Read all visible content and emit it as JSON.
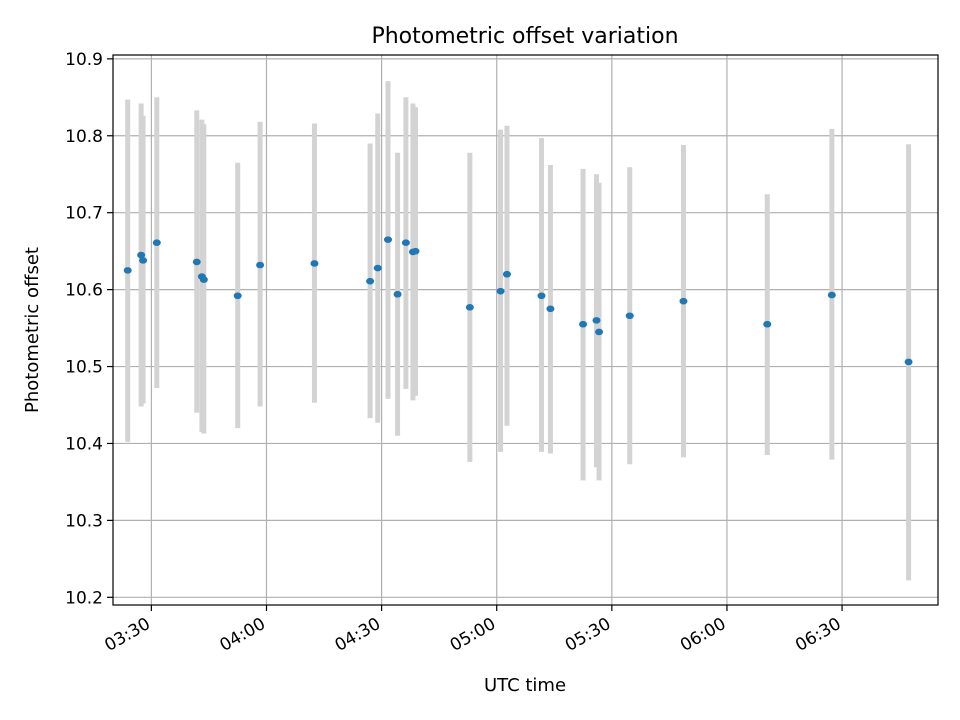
{
  "chart_data": {
    "type": "scatter",
    "title": "Photometric offset variation",
    "xlabel": "UTC time",
    "ylabel": "Photometric offset",
    "xlim": [
      "03:20",
      "06:55"
    ],
    "ylim": [
      10.19,
      10.905
    ],
    "grid": true,
    "x_ticks": [
      "03:30",
      "04:00",
      "04:30",
      "05:00",
      "05:30",
      "06:00",
      "06:30"
    ],
    "y_ticks": [
      10.2,
      10.3,
      10.4,
      10.5,
      10.6,
      10.7,
      10.8,
      10.9
    ],
    "y_tick_labels": [
      "10.2",
      "10.3",
      "10.4",
      "10.5",
      "10.6",
      "10.7",
      "10.8",
      "10.9"
    ],
    "series": [
      {
        "points": [
          {
            "x": "03:23:50",
            "y": 10.625,
            "lo": 10.402,
            "hi": 10.847
          },
          {
            "x": "03:27:20",
            "y": 10.645,
            "lo": 10.448,
            "hi": 10.842
          },
          {
            "x": "03:27:50",
            "y": 10.638,
            "lo": 10.452,
            "hi": 10.826
          },
          {
            "x": "03:31:25",
            "y": 10.661,
            "lo": 10.472,
            "hi": 10.85
          },
          {
            "x": "03:41:50",
            "y": 10.636,
            "lo": 10.44,
            "hi": 10.833
          },
          {
            "x": "03:43:10",
            "y": 10.617,
            "lo": 10.415,
            "hi": 10.821
          },
          {
            "x": "03:43:40",
            "y": 10.613,
            "lo": 10.413,
            "hi": 10.815
          },
          {
            "x": "03:52:30",
            "y": 10.592,
            "lo": 10.42,
            "hi": 10.765
          },
          {
            "x": "03:58:20",
            "y": 10.632,
            "lo": 10.448,
            "hi": 10.818
          },
          {
            "x": "04:12:30",
            "y": 10.634,
            "lo": 10.453,
            "hi": 10.816
          },
          {
            "x": "04:27:00",
            "y": 10.611,
            "lo": 10.433,
            "hi": 10.79
          },
          {
            "x": "04:29:00",
            "y": 10.628,
            "lo": 10.427,
            "hi": 10.829
          },
          {
            "x": "04:31:40",
            "y": 10.665,
            "lo": 10.458,
            "hi": 10.871
          },
          {
            "x": "04:34:10",
            "y": 10.594,
            "lo": 10.41,
            "hi": 10.778
          },
          {
            "x": "04:36:20",
            "y": 10.661,
            "lo": 10.471,
            "hi": 10.85
          },
          {
            "x": "04:38:10",
            "y": 10.649,
            "lo": 10.456,
            "hi": 10.842
          },
          {
            "x": "04:38:50",
            "y": 10.65,
            "lo": 10.462,
            "hi": 10.837
          },
          {
            "x": "04:53:00",
            "y": 10.577,
            "lo": 10.376,
            "hi": 10.778
          },
          {
            "x": "05:01:00",
            "y": 10.598,
            "lo": 10.389,
            "hi": 10.808
          },
          {
            "x": "05:02:40",
            "y": 10.62,
            "lo": 10.423,
            "hi": 10.813
          },
          {
            "x": "05:11:40",
            "y": 10.592,
            "lo": 10.389,
            "hi": 10.797
          },
          {
            "x": "05:14:00",
            "y": 10.575,
            "lo": 10.387,
            "hi": 10.762
          },
          {
            "x": "05:22:30",
            "y": 10.555,
            "lo": 10.352,
            "hi": 10.757
          },
          {
            "x": "05:26:00",
            "y": 10.56,
            "lo": 10.369,
            "hi": 10.75
          },
          {
            "x": "05:26:40",
            "y": 10.545,
            "lo": 10.352,
            "hi": 10.739
          },
          {
            "x": "05:34:40",
            "y": 10.566,
            "lo": 10.373,
            "hi": 10.759
          },
          {
            "x": "05:48:40",
            "y": 10.585,
            "lo": 10.382,
            "hi": 10.788
          },
          {
            "x": "06:10:30",
            "y": 10.555,
            "lo": 10.385,
            "hi": 10.724
          },
          {
            "x": "06:27:20",
            "y": 10.593,
            "lo": 10.379,
            "hi": 10.809
          },
          {
            "x": "06:47:20",
            "y": 10.506,
            "lo": 10.222,
            "hi": 10.789
          }
        ]
      }
    ],
    "colors": {
      "point": "#1f77b4",
      "errorbar": "#d3d3d3",
      "grid": "#b0b0b0"
    }
  }
}
